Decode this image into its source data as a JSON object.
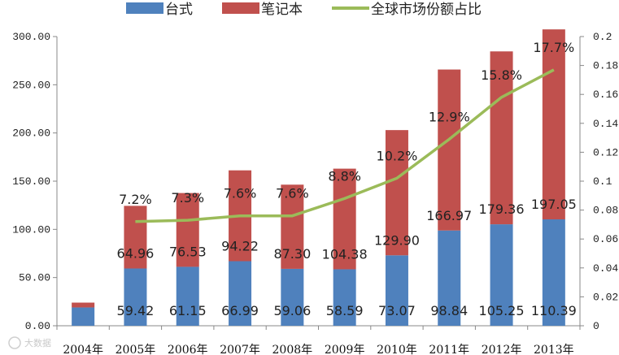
{
  "chart_data": {
    "type": "bar",
    "stacked": true,
    "categories": [
      "2004年",
      "2005年",
      "2006年",
      "2007年",
      "2008年",
      "2009年",
      "2010年",
      "2011年",
      "2012年",
      "2013年"
    ],
    "series": [
      {
        "name": "台式",
        "kind": "bar",
        "axis": "left",
        "color": "#4f81bd",
        "values": [
          19,
          59.42,
          61.15,
          66.99,
          59.06,
          58.59,
          73.07,
          98.84,
          105.25,
          110.39
        ],
        "labels": [
          "",
          "59.42",
          "61.15",
          "66.99",
          "59.06",
          "58.59",
          "73.07",
          "98.84",
          "105.25",
          "110.39"
        ]
      },
      {
        "name": "笔记本",
        "kind": "bar",
        "axis": "left",
        "color": "#c0504d",
        "values": [
          5,
          64.96,
          76.53,
          94.22,
          87.3,
          104.38,
          129.9,
          166.97,
          179.36,
          197.05
        ],
        "labels": [
          "",
          "64.96",
          "76.53",
          "94.22",
          "87.30",
          "104.38",
          "129.90",
          "166.97",
          "179.36",
          "197.05"
        ]
      },
      {
        "name": "全球市场份额占比",
        "kind": "line",
        "axis": "right",
        "color": "#9bbb59",
        "values": [
          null,
          0.072,
          0.073,
          0.076,
          0.076,
          0.088,
          0.102,
          0.129,
          0.158,
          0.177
        ],
        "labels": [
          "",
          "7.2%",
          "7.3%",
          "7.6%",
          "7.6%",
          "8.8%",
          "10.2%",
          "12.9%",
          "15.8%",
          "17.7%"
        ]
      }
    ],
    "left_axis": {
      "ylim": [
        0,
        300
      ],
      "ticks": [
        "0.00",
        "50.00",
        "100.00",
        "150.00",
        "200.00",
        "250.00",
        "300.00"
      ]
    },
    "right_axis": {
      "ylim": [
        0,
        0.2
      ],
      "ticks": [
        "0",
        "0.02",
        "0.04",
        "0.06",
        "0.08",
        "0.1",
        "0.12",
        "0.14",
        "0.16",
        "0.18",
        "0.2"
      ]
    },
    "legend": {
      "position": "top"
    },
    "grid": false
  },
  "watermark": "大数据"
}
